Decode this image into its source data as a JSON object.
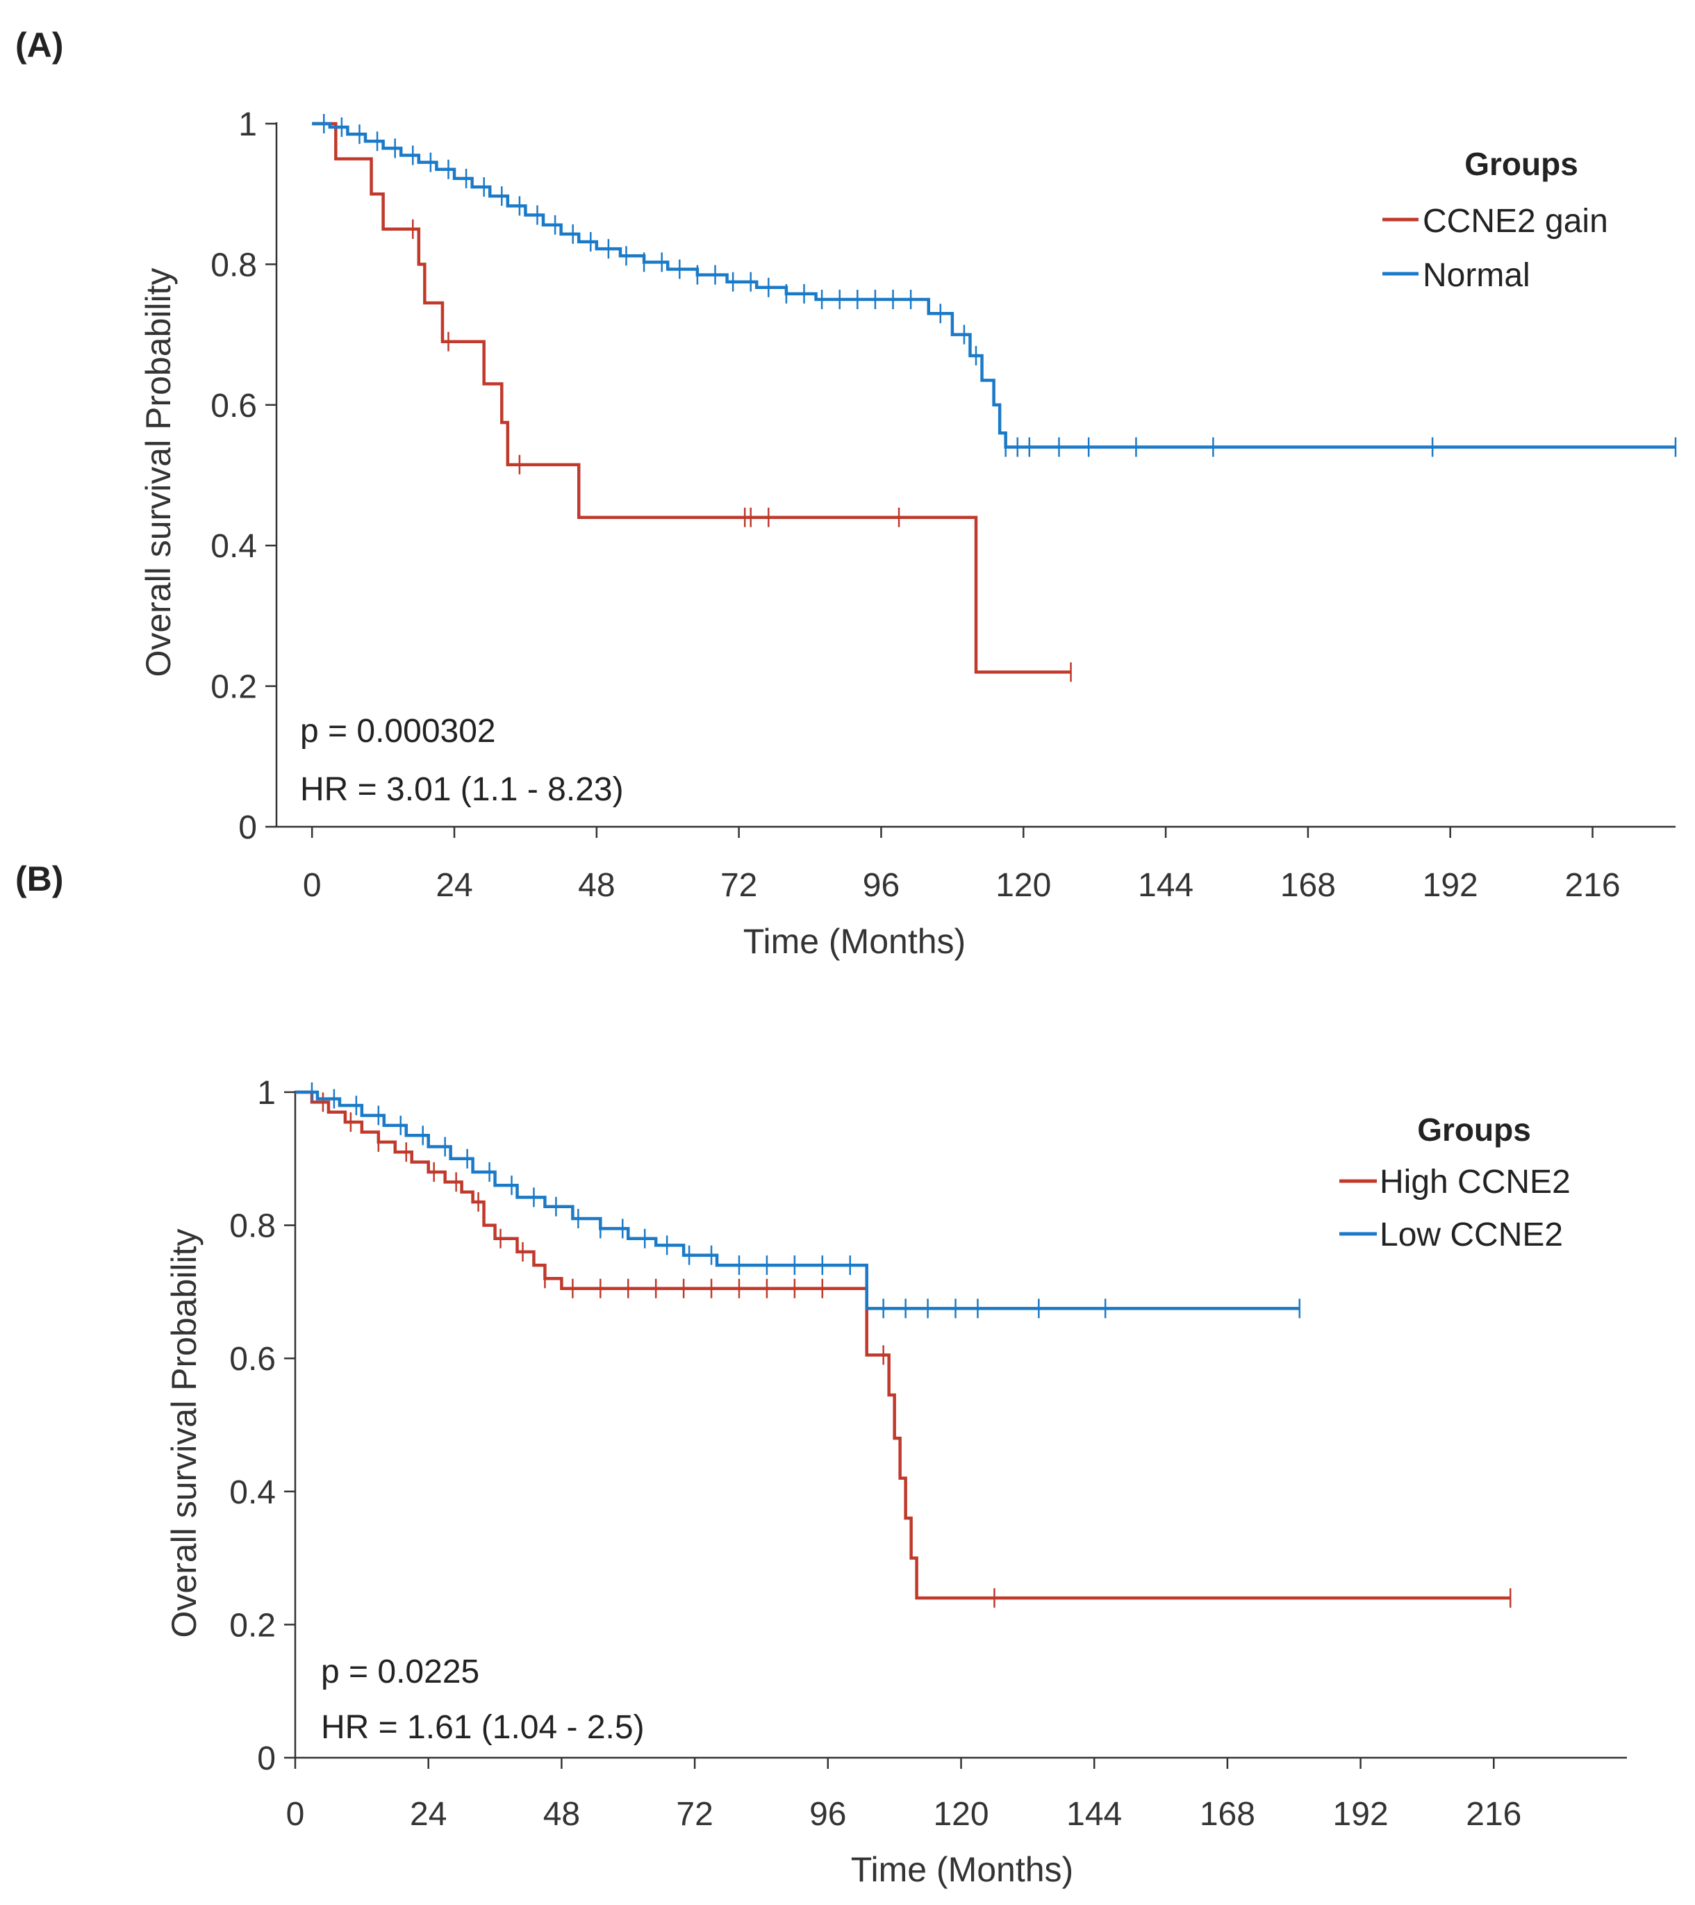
{
  "chart_data": [
    {
      "type": "line",
      "subtype": "kaplan-meier",
      "panel_label": "(A)",
      "xlabel": "Time (Months)",
      "ylabel": "Overall survival Probability",
      "xlim": [
        -6,
        230
      ],
      "ylim": [
        0,
        1
      ],
      "xticks": [
        0,
        24,
        48,
        72,
        96,
        120,
        144,
        168,
        192,
        216
      ],
      "xtick_labels": [
        "0",
        "24",
        "48",
        "72",
        "96",
        "120",
        "144",
        "168",
        "192",
        "216"
      ],
      "yticks": [
        0,
        0.2,
        0.4,
        0.6,
        0.8,
        1
      ],
      "ytick_labels": [
        "0",
        "0.2",
        "0.4",
        "0.6",
        "0.8",
        "1"
      ],
      "legend_title": "Groups",
      "legend_position": "top-right",
      "annotations": [
        "p = 0.000302",
        "HR = 3.01 (1.1 - 8.23)"
      ],
      "series": [
        {
          "name": "CCNE2 gain",
          "color": "#c0392b",
          "steps": [
            [
              0,
              1.0
            ],
            [
              4,
              0.95
            ],
            [
              10,
              0.9
            ],
            [
              12,
              0.85
            ],
            [
              18,
              0.8
            ],
            [
              19,
              0.745
            ],
            [
              22,
              0.69
            ],
            [
              29,
              0.63
            ],
            [
              32,
              0.575
            ],
            [
              33,
              0.515
            ],
            [
              45,
              0.44
            ],
            [
              112,
              0.22
            ],
            [
              128,
              0.22
            ]
          ],
          "censor_times": [
            17,
            23,
            35,
            73,
            74,
            77,
            99,
            128
          ]
        },
        {
          "name": "Normal",
          "color": "#1a7ac8",
          "steps": [
            [
              0,
              1.0
            ],
            [
              3,
              0.995
            ],
            [
              6,
              0.985
            ],
            [
              9,
              0.975
            ],
            [
              12,
              0.965
            ],
            [
              15,
              0.955
            ],
            [
              18,
              0.945
            ],
            [
              21,
              0.935
            ],
            [
              24,
              0.922
            ],
            [
              27,
              0.91
            ],
            [
              30,
              0.897
            ],
            [
              33,
              0.883
            ],
            [
              36,
              0.87
            ],
            [
              39,
              0.856
            ],
            [
              42,
              0.843
            ],
            [
              45,
              0.832
            ],
            [
              48,
              0.822
            ],
            [
              52,
              0.812
            ],
            [
              56,
              0.803
            ],
            [
              60,
              0.793
            ],
            [
              65,
              0.785
            ],
            [
              70,
              0.775
            ],
            [
              75,
              0.767
            ],
            [
              80,
              0.758
            ],
            [
              85,
              0.75
            ],
            [
              104,
              0.73
            ],
            [
              108,
              0.7
            ],
            [
              111,
              0.67
            ],
            [
              113,
              0.635
            ],
            [
              115,
              0.6
            ],
            [
              116,
              0.56
            ],
            [
              117,
              0.54
            ],
            [
              230,
              0.54
            ]
          ],
          "censor_times": [
            2,
            5,
            8,
            11,
            14,
            17,
            20,
            23,
            26,
            29,
            32,
            35,
            38,
            41,
            44,
            47,
            50,
            53,
            56,
            59,
            62,
            65,
            68,
            71,
            74,
            77,
            80,
            83,
            86,
            89,
            92,
            95,
            98,
            101,
            106,
            110,
            112,
            117,
            119,
            121,
            126,
            131,
            139,
            152,
            189,
            230
          ]
        }
      ]
    },
    {
      "type": "line",
      "subtype": "kaplan-meier",
      "panel_label": "(B)",
      "xlabel": "Time (Months)",
      "ylabel": "Overall survival Probability",
      "xlim": [
        0,
        240
      ],
      "ylim": [
        0,
        1
      ],
      "xticks": [
        0,
        24,
        48,
        72,
        96,
        120,
        144,
        168,
        192,
        216
      ],
      "xtick_labels": [
        "0",
        "24",
        "48",
        "72",
        "96",
        "120",
        "144",
        "168",
        "192",
        "216"
      ],
      "yticks": [
        0,
        0.2,
        0.4,
        0.6,
        0.8,
        1
      ],
      "ytick_labels": [
        "0",
        "0.2",
        "0.4",
        "0.6",
        "0.8",
        "1"
      ],
      "legend_title": "Groups",
      "legend_position": "top-right",
      "annotations": [
        "p = 0.0225",
        "HR = 1.61 (1.04 - 2.5)"
      ],
      "series": [
        {
          "name": "High CCNE2",
          "color": "#c0392b",
          "steps": [
            [
              0,
              1.0
            ],
            [
              3,
              0.985
            ],
            [
              6,
              0.97
            ],
            [
              9,
              0.955
            ],
            [
              12,
              0.94
            ],
            [
              15,
              0.925
            ],
            [
              18,
              0.91
            ],
            [
              21,
              0.895
            ],
            [
              24,
              0.88
            ],
            [
              27,
              0.865
            ],
            [
              30,
              0.85
            ],
            [
              32,
              0.835
            ],
            [
              34,
              0.8
            ],
            [
              36,
              0.78
            ],
            [
              40,
              0.76
            ],
            [
              43,
              0.74
            ],
            [
              45,
              0.72
            ],
            [
              48,
              0.705
            ],
            [
              103,
              0.605
            ],
            [
              107,
              0.545
            ],
            [
              108,
              0.48
            ],
            [
              109,
              0.42
            ],
            [
              110,
              0.36
            ],
            [
              111,
              0.3
            ],
            [
              112,
              0.24
            ],
            [
              219,
              0.24
            ]
          ],
          "censor_times": [
            5,
            10,
            15,
            20,
            25,
            29,
            33,
            37,
            41,
            45,
            50,
            55,
            60,
            65,
            70,
            75,
            80,
            85,
            90,
            95,
            106,
            126,
            219
          ]
        },
        {
          "name": "Low CCNE2",
          "color": "#1a7ac8",
          "steps": [
            [
              0,
              1.0
            ],
            [
              4,
              0.99
            ],
            [
              8,
              0.98
            ],
            [
              12,
              0.965
            ],
            [
              16,
              0.95
            ],
            [
              20,
              0.935
            ],
            [
              24,
              0.918
            ],
            [
              28,
              0.9
            ],
            [
              32,
              0.88
            ],
            [
              36,
              0.86
            ],
            [
              40,
              0.842
            ],
            [
              45,
              0.828
            ],
            [
              50,
              0.81
            ],
            [
              55,
              0.795
            ],
            [
              60,
              0.78
            ],
            [
              65,
              0.77
            ],
            [
              70,
              0.755
            ],
            [
              76,
              0.74
            ],
            [
              103,
              0.675
            ],
            [
              181,
              0.675
            ]
          ],
          "censor_times": [
            3,
            7,
            11,
            15,
            19,
            23,
            27,
            31,
            35,
            39,
            43,
            47,
            51,
            55,
            59,
            63,
            67,
            71,
            75,
            80,
            85,
            90,
            95,
            100,
            106,
            110,
            114,
            119,
            123,
            134,
            146,
            181
          ]
        }
      ]
    }
  ]
}
